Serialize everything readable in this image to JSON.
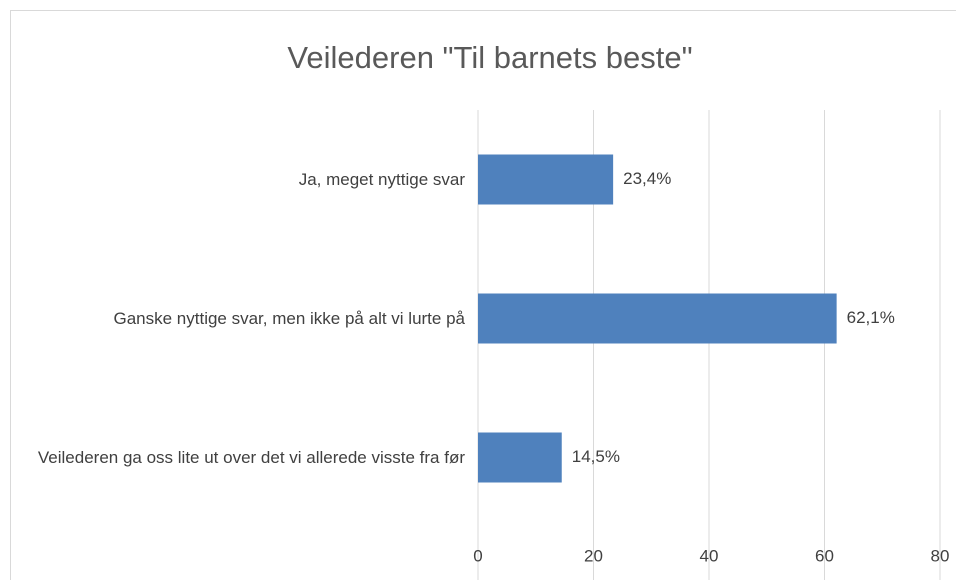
{
  "chart_data": {
    "type": "bar",
    "orientation": "horizontal",
    "title": "Veilederen \"Til barnets beste\"",
    "categories": [
      "Ja, meget nyttige svar",
      "Ganske nyttige svar, men ikke på alt vi lurte på",
      "Veilederen ga oss lite ut over det vi allerede visste fra før"
    ],
    "values": [
      23.4,
      62.1,
      14.5
    ],
    "value_labels": [
      "23,4%",
      "62,1%",
      "14,5%"
    ],
    "color": "#4f81bd",
    "xlim": [
      0,
      80
    ],
    "xticks": [
      0,
      20,
      40,
      60,
      80
    ],
    "grid": true
  }
}
